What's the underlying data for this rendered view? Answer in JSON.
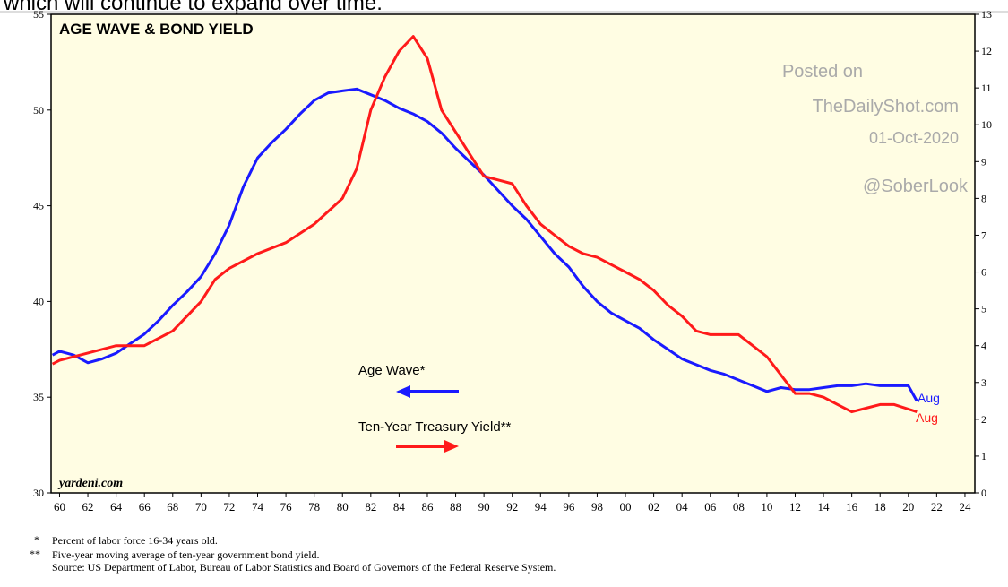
{
  "header_text": "which will continue to expand over time.",
  "chart_data": {
    "type": "line",
    "title": "AGE WAVE & BOND YIELD",
    "annotations": [
      "Posted on",
      "TheDailyShot.com",
      "01-Oct-2020",
      "@SoberLook",
      "yardeni.com"
    ],
    "end_labels": [
      "Aug",
      "Aug"
    ],
    "xlim": [
      1959.4,
      2024.7
    ],
    "xticks": [
      {
        "value": 1960,
        "label": "60"
      },
      {
        "value": 1962,
        "label": "62"
      },
      {
        "value": 1964,
        "label": "64"
      },
      {
        "value": 1966,
        "label": "66"
      },
      {
        "value": 1968,
        "label": "68"
      },
      {
        "value": 1970,
        "label": "70"
      },
      {
        "value": 1972,
        "label": "72"
      },
      {
        "value": 1974,
        "label": "74"
      },
      {
        "value": 1976,
        "label": "76"
      },
      {
        "value": 1978,
        "label": "78"
      },
      {
        "value": 1980,
        "label": "80"
      },
      {
        "value": 1982,
        "label": "82"
      },
      {
        "value": 1984,
        "label": "84"
      },
      {
        "value": 1986,
        "label": "86"
      },
      {
        "value": 1988,
        "label": "88"
      },
      {
        "value": 1990,
        "label": "90"
      },
      {
        "value": 1992,
        "label": "92"
      },
      {
        "value": 1994,
        "label": "94"
      },
      {
        "value": 1996,
        "label": "96"
      },
      {
        "value": 1998,
        "label": "98"
      },
      {
        "value": 2000,
        "label": "00"
      },
      {
        "value": 2002,
        "label": "02"
      },
      {
        "value": 2004,
        "label": "04"
      },
      {
        "value": 2006,
        "label": "06"
      },
      {
        "value": 2008,
        "label": "08"
      },
      {
        "value": 2010,
        "label": "10"
      },
      {
        "value": 2012,
        "label": "12"
      },
      {
        "value": 2014,
        "label": "14"
      },
      {
        "value": 2016,
        "label": "16"
      },
      {
        "value": 2018,
        "label": "18"
      },
      {
        "value": 2020,
        "label": "20"
      },
      {
        "value": 2022,
        "label": "22"
      },
      {
        "value": 2024,
        "label": "24"
      }
    ],
    "ylim": [
      30,
      55
    ],
    "yticks": [
      30,
      35,
      40,
      45,
      50,
      55
    ],
    "y2lim": [
      0,
      13
    ],
    "y2ticks": [
      0,
      1,
      2,
      3,
      4,
      5,
      6,
      7,
      8,
      9,
      10,
      11,
      12,
      13
    ],
    "series": [
      {
        "name": "Age Wave*",
        "color": "#1a1aff",
        "axis": "y",
        "x": [
          1959.5,
          1960,
          1961,
          1962,
          1963,
          1964,
          1965,
          1966,
          1967,
          1968,
          1969,
          1970,
          1971,
          1972,
          1973,
          1974,
          1975,
          1976,
          1977,
          1978,
          1979,
          1980,
          1981,
          1982,
          1983,
          1984,
          1985,
          1986,
          1987,
          1988,
          1989,
          1990,
          1991,
          1992,
          1993,
          1994,
          1995,
          1996,
          1997,
          1998,
          1999,
          2000,
          2001,
          2002,
          2003,
          2004,
          2005,
          2006,
          2007,
          2008,
          2009,
          2010,
          2011,
          2012,
          2013,
          2014,
          2015,
          2016,
          2017,
          2018,
          2019,
          2020,
          2020.6
        ],
        "values": [
          37.2,
          37.4,
          37.2,
          36.8,
          37.0,
          37.3,
          37.8,
          38.3,
          39.0,
          39.8,
          40.5,
          41.3,
          42.5,
          44.0,
          46.0,
          47.5,
          48.3,
          49.0,
          49.8,
          50.5,
          50.9,
          51.0,
          51.1,
          50.8,
          50.5,
          50.1,
          49.8,
          49.4,
          48.8,
          48.0,
          47.3,
          46.6,
          45.8,
          45.0,
          44.3,
          43.4,
          42.5,
          41.8,
          40.8,
          40.0,
          39.4,
          39.0,
          38.6,
          38.0,
          37.5,
          37.0,
          36.7,
          36.4,
          36.2,
          35.9,
          35.6,
          35.3,
          35.5,
          35.4,
          35.4,
          35.5,
          35.6,
          35.6,
          35.7,
          35.6,
          35.6,
          35.6,
          34.8
        ]
      },
      {
        "name": "Ten-Year Treasury Yield**",
        "color": "#ff1a1a",
        "axis": "y2",
        "x": [
          1959.5,
          1960,
          1962,
          1964,
          1966,
          1968,
          1970,
          1971,
          1972,
          1974,
          1976,
          1978,
          1980,
          1981,
          1982,
          1983,
          1984,
          1985,
          1986,
          1987,
          1988,
          1989,
          1990,
          1991,
          1992,
          1993,
          1994,
          1995,
          1996,
          1997,
          1998,
          1999,
          2000,
          2001,
          2002,
          2003,
          2004,
          2005,
          2006,
          2007,
          2008,
          2009,
          2010,
          2011,
          2012,
          2013,
          2014,
          2015,
          2016,
          2017,
          2018,
          2019,
          2020.6
        ],
        "values": [
          3.5,
          3.6,
          3.8,
          4.0,
          4.0,
          4.4,
          5.2,
          5.8,
          6.1,
          6.5,
          6.8,
          7.3,
          8.0,
          8.8,
          10.4,
          11.3,
          12.0,
          12.4,
          11.8,
          10.4,
          9.8,
          9.2,
          8.6,
          8.5,
          8.4,
          7.8,
          7.3,
          7.0,
          6.7,
          6.5,
          6.4,
          6.2,
          6.0,
          5.8,
          5.5,
          5.1,
          4.8,
          4.4,
          4.3,
          4.3,
          4.3,
          4.0,
          3.7,
          3.2,
          2.7,
          2.7,
          2.6,
          2.4,
          2.2,
          2.3,
          2.4,
          2.4,
          2.2
        ]
      }
    ],
    "footnotes": [
      {
        "mark": "*",
        "text": "Percent of labor force 16-34 years old."
      },
      {
        "mark": "**",
        "text": "Five-year moving average of ten-year government bond yield."
      },
      {
        "mark": "",
        "text": "Source: US Department of Labor, Bureau of Labor Statistics and Board of Governors of the Federal Reserve System."
      }
    ]
  }
}
